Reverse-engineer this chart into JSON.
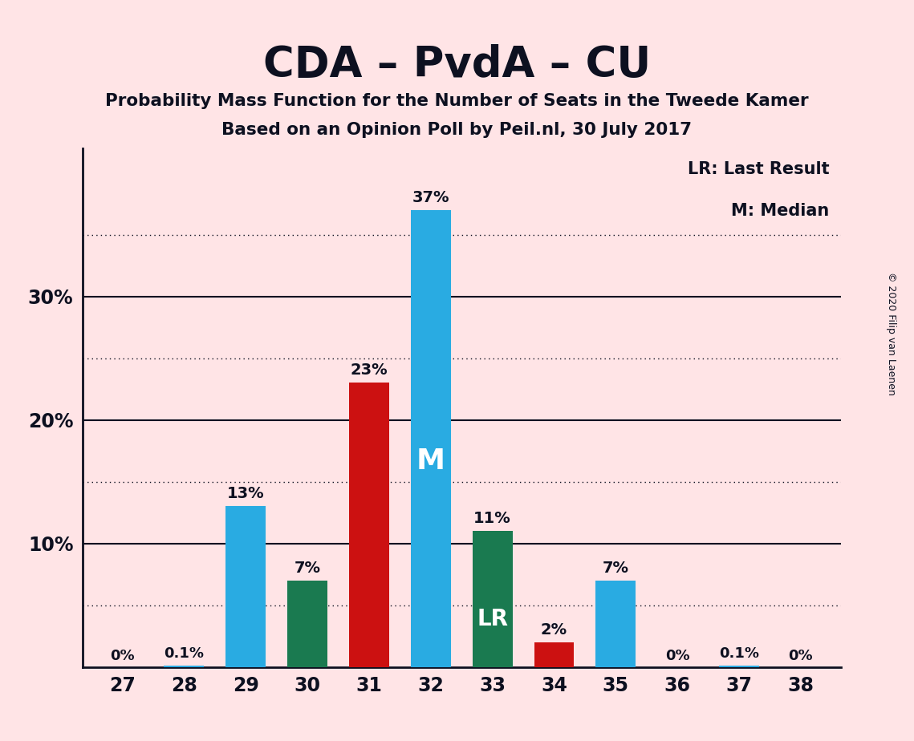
{
  "title": "CDA – PvdA – CU",
  "subtitle1": "Probability Mass Function for the Number of Seats in the Tweede Kamer",
  "subtitle2": "Based on an Opinion Poll by Peil.nl, 30 July 2017",
  "copyright": "© 2020 Filip van Laenen",
  "legend_lr": "LR: Last Result",
  "legend_m": "M: Median",
  "categories": [
    27,
    28,
    29,
    30,
    31,
    32,
    33,
    34,
    35,
    36,
    37,
    38
  ],
  "values": [
    0.0,
    0.1,
    13.0,
    7.0,
    23.0,
    37.0,
    11.0,
    2.0,
    7.0,
    0.0,
    0.1,
    0.0
  ],
  "bar_colors": [
    "#29ABE2",
    "#29ABE2",
    "#29ABE2",
    "#1A7A50",
    "#CC1111",
    "#29ABE2",
    "#1A7A50",
    "#CC1111",
    "#29ABE2",
    "#29ABE2",
    "#29ABE2",
    "#29ABE2"
  ],
  "bar_labels": [
    "0%",
    "0.1%",
    "13%",
    "7%",
    "23%",
    "37%",
    "11%",
    "2%",
    "7%",
    "0%",
    "0.1%",
    "0%"
  ],
  "median_bar": 5,
  "lr_bar": 6,
  "background_color": "#FFE4E6",
  "axis_color": "#0D1020",
  "ylim": [
    0,
    42
  ],
  "yticks": [
    10,
    20,
    30
  ],
  "ytick_labels": [
    "10%",
    "20%",
    "30%"
  ],
  "dotted_lines": [
    5,
    15,
    25,
    35
  ],
  "solid_lines": [
    10,
    20,
    30
  ]
}
